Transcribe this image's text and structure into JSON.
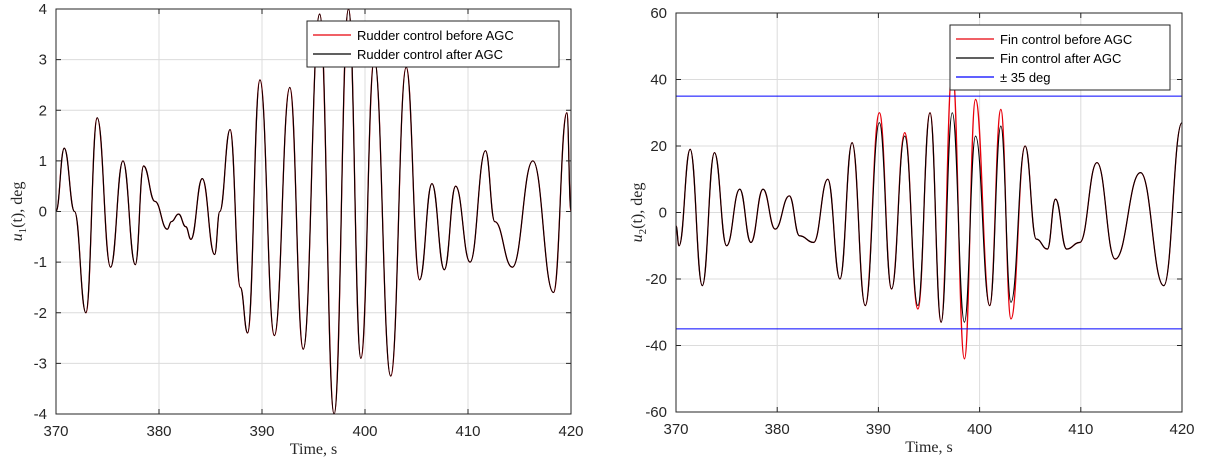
{
  "chart_data": [
    {
      "type": "line",
      "xlabel": "Time, s",
      "ylabel_main": "u",
      "ylabel_sub": "1",
      "ylabel_rest": "(t), deg",
      "xlim": [
        370,
        420
      ],
      "ylim": [
        -4,
        4
      ],
      "xticks": [
        370,
        380,
        390,
        400,
        410,
        420
      ],
      "yticks": [
        -4,
        -3,
        -2,
        -1,
        0,
        1,
        2,
        3,
        4
      ],
      "grid": true,
      "legend_position": "top-right",
      "series": [
        {
          "name": "Rudder control before AGC",
          "color": "#e8000b",
          "x": [
            370,
            370.8,
            371.8,
            372.9,
            374.0,
            375.3,
            376.5,
            377.7,
            378.5,
            379.6,
            380.8,
            381.2,
            381.9,
            382.6,
            383.1,
            384.2,
            385.4,
            385.9,
            386.9,
            387.9,
            388.6,
            389.8,
            391.2,
            392.7,
            394.0,
            395.6,
            397.0,
            398.4,
            399.6,
            400.9,
            402.5,
            404.0,
            405.3,
            406.5,
            407.7,
            408.8,
            410.2,
            411.7,
            412.6,
            414.3,
            416.3,
            418.3,
            419.6,
            420
          ],
          "values": [
            0,
            1.25,
            0,
            -2.0,
            1.85,
            -1.1,
            1.0,
            -1.05,
            0.9,
            0.2,
            -0.35,
            -0.2,
            -0.05,
            -0.3,
            -0.55,
            0.65,
            -0.85,
            0,
            1.62,
            -1.5,
            -2.4,
            2.6,
            -2.45,
            2.45,
            -2.72,
            3.9,
            -4.0,
            4.0,
            -2.9,
            3.0,
            -3.25,
            2.85,
            -1.35,
            0.55,
            -1.15,
            0.5,
            -1.0,
            1.2,
            -0.2,
            -1.1,
            1.0,
            -1.6,
            1.95,
            0
          ]
        },
        {
          "name": "Rudder control after AGC",
          "color": "#000000",
          "x": [
            370,
            370.8,
            371.8,
            372.9,
            374.0,
            375.3,
            376.5,
            377.7,
            378.5,
            379.6,
            380.8,
            381.2,
            381.9,
            382.6,
            383.1,
            384.2,
            385.4,
            385.9,
            386.9,
            387.9,
            388.6,
            389.8,
            391.2,
            392.7,
            394.0,
            395.6,
            397.0,
            398.4,
            399.6,
            400.9,
            402.5,
            404.0,
            405.3,
            406.5,
            407.7,
            408.8,
            410.2,
            411.7,
            412.6,
            414.3,
            416.3,
            418.3,
            419.6,
            420
          ],
          "values": [
            0,
            1.25,
            0,
            -2.0,
            1.85,
            -1.1,
            1.0,
            -1.05,
            0.9,
            0.2,
            -0.35,
            -0.2,
            -0.05,
            -0.3,
            -0.55,
            0.65,
            -0.85,
            0,
            1.62,
            -1.5,
            -2.4,
            2.6,
            -2.45,
            2.45,
            -2.72,
            3.9,
            -4.0,
            4.0,
            -2.9,
            3.0,
            -3.25,
            2.85,
            -1.35,
            0.55,
            -1.15,
            0.5,
            -1.0,
            1.2,
            -0.2,
            -1.1,
            1.0,
            -1.6,
            1.95,
            0
          ]
        }
      ]
    },
    {
      "type": "line",
      "xlabel": "Time, s",
      "ylabel_main": "u",
      "ylabel_sub": "2",
      "ylabel_rest": "(t), deg",
      "xlim": [
        370,
        420
      ],
      "ylim": [
        -60,
        60
      ],
      "xticks": [
        370,
        380,
        390,
        400,
        410,
        420
      ],
      "yticks": [
        -60,
        -40,
        -20,
        0,
        20,
        40,
        60
      ],
      "grid": true,
      "legend_position": "top-right",
      "series": [
        {
          "name": "Fin control before AGC",
          "color": "#e8000b",
          "x": [
            370,
            370.3,
            371.4,
            372.6,
            373.8,
            375.0,
            376.3,
            377.4,
            378.6,
            379.8,
            381.2,
            382.2,
            383.6,
            385.0,
            386.2,
            387.4,
            388.7,
            390.1,
            391.3,
            392.6,
            393.9,
            395.1,
            396.2,
            397.3,
            398.5,
            399.6,
            401.0,
            402.1,
            403.1,
            404.5,
            405.6,
            406.7,
            407.5,
            408.6,
            409.9,
            411.6,
            413.4,
            415.9,
            418.2,
            420
          ],
          "values": [
            -4,
            -10,
            19,
            -22,
            18,
            -10,
            7,
            -9,
            7,
            -5,
            5,
            -7,
            -9,
            10,
            -20,
            21,
            -28,
            30,
            -23,
            24,
            -29,
            30,
            -33,
            43,
            -44,
            34,
            -28,
            31,
            -32,
            20,
            -8,
            -11,
            4,
            -11,
            -9,
            15,
            -14,
            12,
            -22,
            27
          ]
        },
        {
          "name": "Fin control after AGC",
          "color": "#000000",
          "x": [
            370,
            370.3,
            371.4,
            372.6,
            373.8,
            375.0,
            376.3,
            377.4,
            378.6,
            379.8,
            381.2,
            382.2,
            383.6,
            385.0,
            386.2,
            387.4,
            388.7,
            390.1,
            391.3,
            392.6,
            393.9,
            395.1,
            396.2,
            397.3,
            398.5,
            399.6,
            401.0,
            402.1,
            403.1,
            404.5,
            405.6,
            406.7,
            407.5,
            408.6,
            409.9,
            411.6,
            413.4,
            415.9,
            418.2,
            420
          ],
          "values": [
            -4,
            -10,
            19,
            -22,
            18,
            -10,
            7,
            -9,
            7,
            -5,
            5,
            -7,
            -9,
            10,
            -20,
            21,
            -28,
            27,
            -23,
            23,
            -28,
            30,
            -33,
            30,
            -33,
            23,
            -28,
            26,
            -27,
            20,
            -8,
            -11,
            4,
            -11,
            -9,
            15,
            -14,
            12,
            -22,
            27
          ]
        },
        {
          "name": "± 35 deg",
          "color": "#0000ff",
          "x": [
            370,
            420
          ],
          "values": [
            35,
            35
          ],
          "values_lower": [
            -35,
            -35
          ]
        }
      ]
    }
  ]
}
